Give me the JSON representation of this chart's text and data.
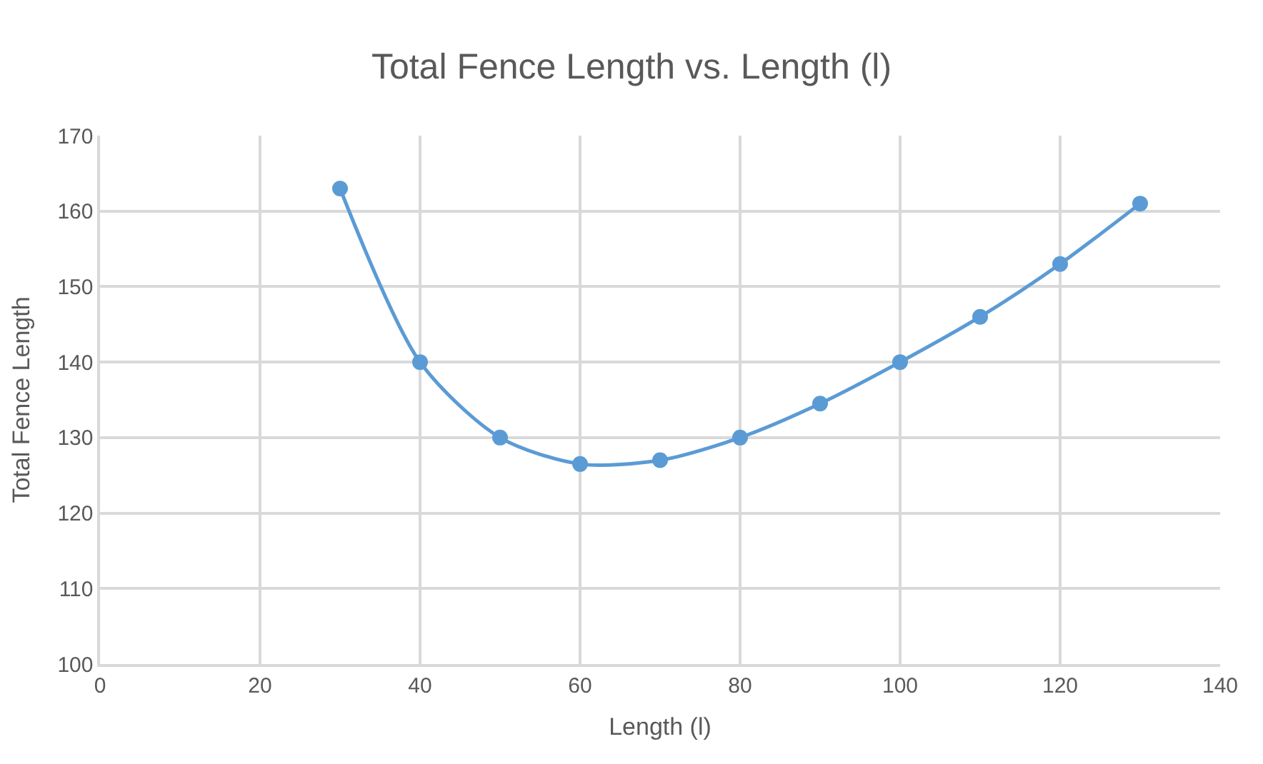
{
  "chart_data": {
    "type": "line",
    "title": "Total Fence Length vs. Length (l)",
    "xlabel": "Length (l)",
    "ylabel": "Total Fence Length",
    "x": [
      30,
      40,
      50,
      60,
      70,
      80,
      90,
      100,
      110,
      120,
      130
    ],
    "series": [
      {
        "color": "#5b9bd5",
        "values": [
          163,
          140,
          130,
          126.5,
          127,
          130,
          134.5,
          140,
          146,
          153,
          161
        ]
      }
    ],
    "xlim": [
      0,
      140
    ],
    "xticks": [
      0,
      20,
      40,
      60,
      80,
      100,
      120,
      140
    ],
    "ylim": [
      100,
      170
    ],
    "yticks": [
      100,
      110,
      120,
      130,
      140,
      150,
      160,
      170
    ],
    "grid": true,
    "legend": false,
    "marker": "circle",
    "line_style": "solid"
  }
}
